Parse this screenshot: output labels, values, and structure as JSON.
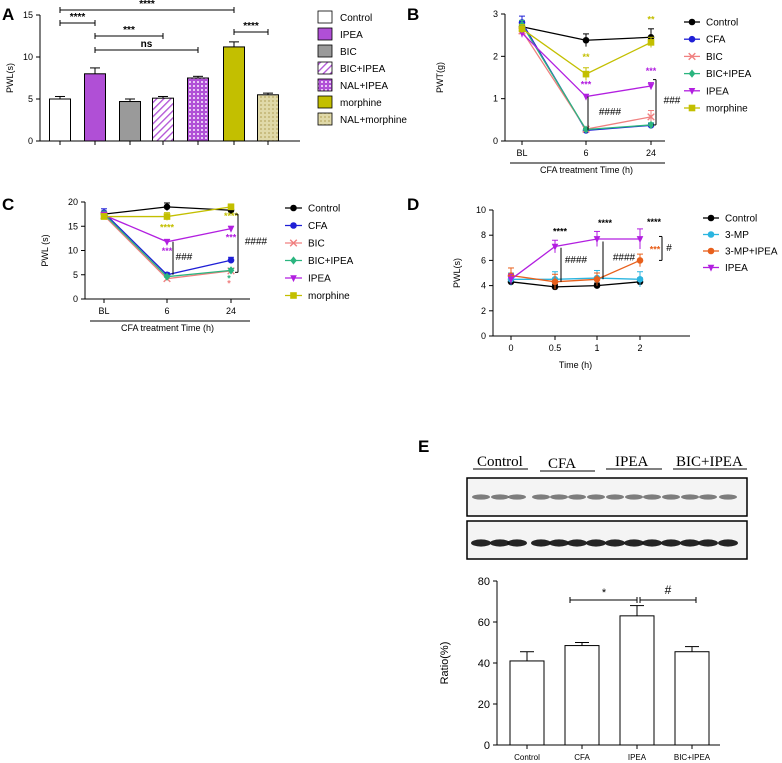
{
  "panel_labels": {
    "A": "A",
    "B": "B",
    "C": "C",
    "D": "D",
    "E": "E"
  },
  "colors": {
    "control": "#000000",
    "cfa": "#1f1fd6",
    "bic": "#f08080",
    "bic_ipea": "#2bb57f",
    "ipea": "#b21fe0",
    "morphine": "#c3bf00",
    "mp3": "#2bb5e0",
    "mp3_ipea": "#e8601c",
    "barA_ipea": "#b04fd6",
    "barA_bic": "#9a9a9a",
    "barA_morphine": "#c3bf00",
    "barA_nal": "#e0d9a8"
  },
  "chart_data": [
    {
      "id": "A",
      "type": "bar",
      "ylabel": "PWL(s)",
      "ylim": [
        0,
        15
      ],
      "yticks": [
        "0",
        "5",
        "10",
        "15"
      ],
      "categories": [
        "Control",
        "IPEA",
        "BIC",
        "BIC+IPEA",
        "NAL+IPEA",
        "morphine",
        "NAL+morphine"
      ],
      "values": [
        5.0,
        8.0,
        4.7,
        5.1,
        7.5,
        11.2,
        5.5
      ],
      "errors": [
        0.3,
        0.7,
        0.3,
        0.2,
        0.2,
        0.6,
        0.2
      ],
      "legend": [
        "Control",
        "IPEA",
        "BIC",
        "BIC+IPEA",
        "NAL+IPEA",
        "morphine",
        "NAL+morphine"
      ],
      "annotations": [
        "****",
        "****",
        "***",
        "ns",
        "****"
      ]
    },
    {
      "id": "B",
      "type": "line",
      "ylabel": "PWT(g)",
      "xlabel": "CFA treatment Time (h)",
      "x": [
        "BL",
        "6",
        "24"
      ],
      "ylim": [
        0,
        3
      ],
      "yticks": [
        "0",
        "1",
        "2",
        "3"
      ],
      "series": [
        {
          "name": "Control",
          "values": [
            2.7,
            2.38,
            2.45
          ],
          "errors": [
            0.1,
            0.15,
            0.2
          ]
        },
        {
          "name": "CFA",
          "values": [
            2.8,
            0.25,
            0.37
          ],
          "errors": [
            0.15,
            0.03,
            0.05
          ]
        },
        {
          "name": "BIC",
          "values": [
            2.6,
            0.28,
            0.57
          ],
          "errors": [
            0.1,
            0.03,
            0.15
          ]
        },
        {
          "name": "BIC+IPEA",
          "values": [
            2.75,
            0.27,
            0.38
          ],
          "errors": [
            0.1,
            0.03,
            0.05
          ]
        },
        {
          "name": "IPEA",
          "values": [
            2.55,
            1.05,
            1.3
          ],
          "errors": [
            0.1,
            0.05,
            0.08
          ]
        },
        {
          "name": "morphine",
          "values": [
            2.65,
            1.58,
            2.33
          ],
          "errors": [
            0.1,
            0.15,
            0.12
          ]
        }
      ],
      "annotations": [
        "**",
        "**",
        "***",
        "***",
        "####",
        "###"
      ]
    },
    {
      "id": "C",
      "type": "line",
      "ylabel": "PWL (s)",
      "xlabel": "CFA treatment Time (h)",
      "x": [
        "BL",
        "6",
        "24"
      ],
      "ylim": [
        0,
        20
      ],
      "yticks": [
        "0",
        "5",
        "10",
        "15",
        "20"
      ],
      "series": [
        {
          "name": "Control",
          "values": [
            17.5,
            19.0,
            18.3
          ],
          "errors": [
            0.6,
            0.8,
            0.8
          ]
        },
        {
          "name": "CFA",
          "values": [
            17.8,
            5.0,
            8.0
          ],
          "errors": [
            0.8,
            0.4,
            0.6
          ]
        },
        {
          "name": "BIC",
          "values": [
            17.2,
            4.2,
            5.8
          ],
          "errors": [
            0.6,
            0.3,
            0.5
          ]
        },
        {
          "name": "BIC+IPEA",
          "values": [
            17.5,
            4.6,
            5.9
          ],
          "errors": [
            0.6,
            0.3,
            0.4
          ]
        },
        {
          "name": "IPEA",
          "values": [
            17.3,
            11.8,
            14.5
          ],
          "errors": [
            0.6,
            0.5,
            0.5
          ]
        },
        {
          "name": "morphine",
          "values": [
            17.0,
            17.0,
            19.0
          ],
          "errors": [
            0.6,
            0.8,
            0.6
          ]
        }
      ],
      "annotations": [
        "****",
        "***",
        "###",
        "****",
        "***",
        "####",
        "*",
        "*"
      ]
    },
    {
      "id": "D",
      "type": "line",
      "ylabel": "PWL(s)",
      "xlabel": "Time (h)",
      "x": [
        "0",
        "0.5",
        "1",
        "2"
      ],
      "ylim": [
        0,
        10
      ],
      "yticks": [
        "0",
        "2",
        "4",
        "6",
        "8",
        "10"
      ],
      "series": [
        {
          "name": "Control",
          "values": [
            4.3,
            3.9,
            4.0,
            4.3
          ],
          "errors": [
            0.2,
            0.2,
            0.2,
            0.3
          ]
        },
        {
          "name": "3-MP",
          "values": [
            4.5,
            4.5,
            4.6,
            4.5
          ],
          "errors": [
            0.5,
            0.6,
            0.6,
            0.6
          ]
        },
        {
          "name": "3-MP+IPEA",
          "values": [
            4.8,
            4.3,
            4.5,
            6.0
          ],
          "errors": [
            0.6,
            0.6,
            0.5,
            0.5
          ]
        },
        {
          "name": "IPEA",
          "values": [
            4.5,
            7.1,
            7.7,
            7.7
          ],
          "errors": [
            0.4,
            0.5,
            0.6,
            0.8
          ]
        }
      ],
      "annotations": [
        "****",
        "****",
        "****",
        "####",
        "####",
        "***",
        "#"
      ]
    },
    {
      "id": "E",
      "type": "bar",
      "ylabel": "Ratio(%)",
      "ylim": [
        0,
        80
      ],
      "yticks": [
        "0",
        "20",
        "40",
        "60",
        "80"
      ],
      "categories": [
        "Control",
        "CFA",
        "IPEA",
        "BIC+IPEA"
      ],
      "values": [
        41,
        48.5,
        63,
        45.5
      ],
      "errors": [
        4.5,
        1.5,
        5,
        2.5
      ],
      "blot_labels": [
        "Control",
        "CFA",
        "IPEA",
        "BIC+IPEA"
      ],
      "annotations": [
        "*",
        "#"
      ]
    }
  ]
}
